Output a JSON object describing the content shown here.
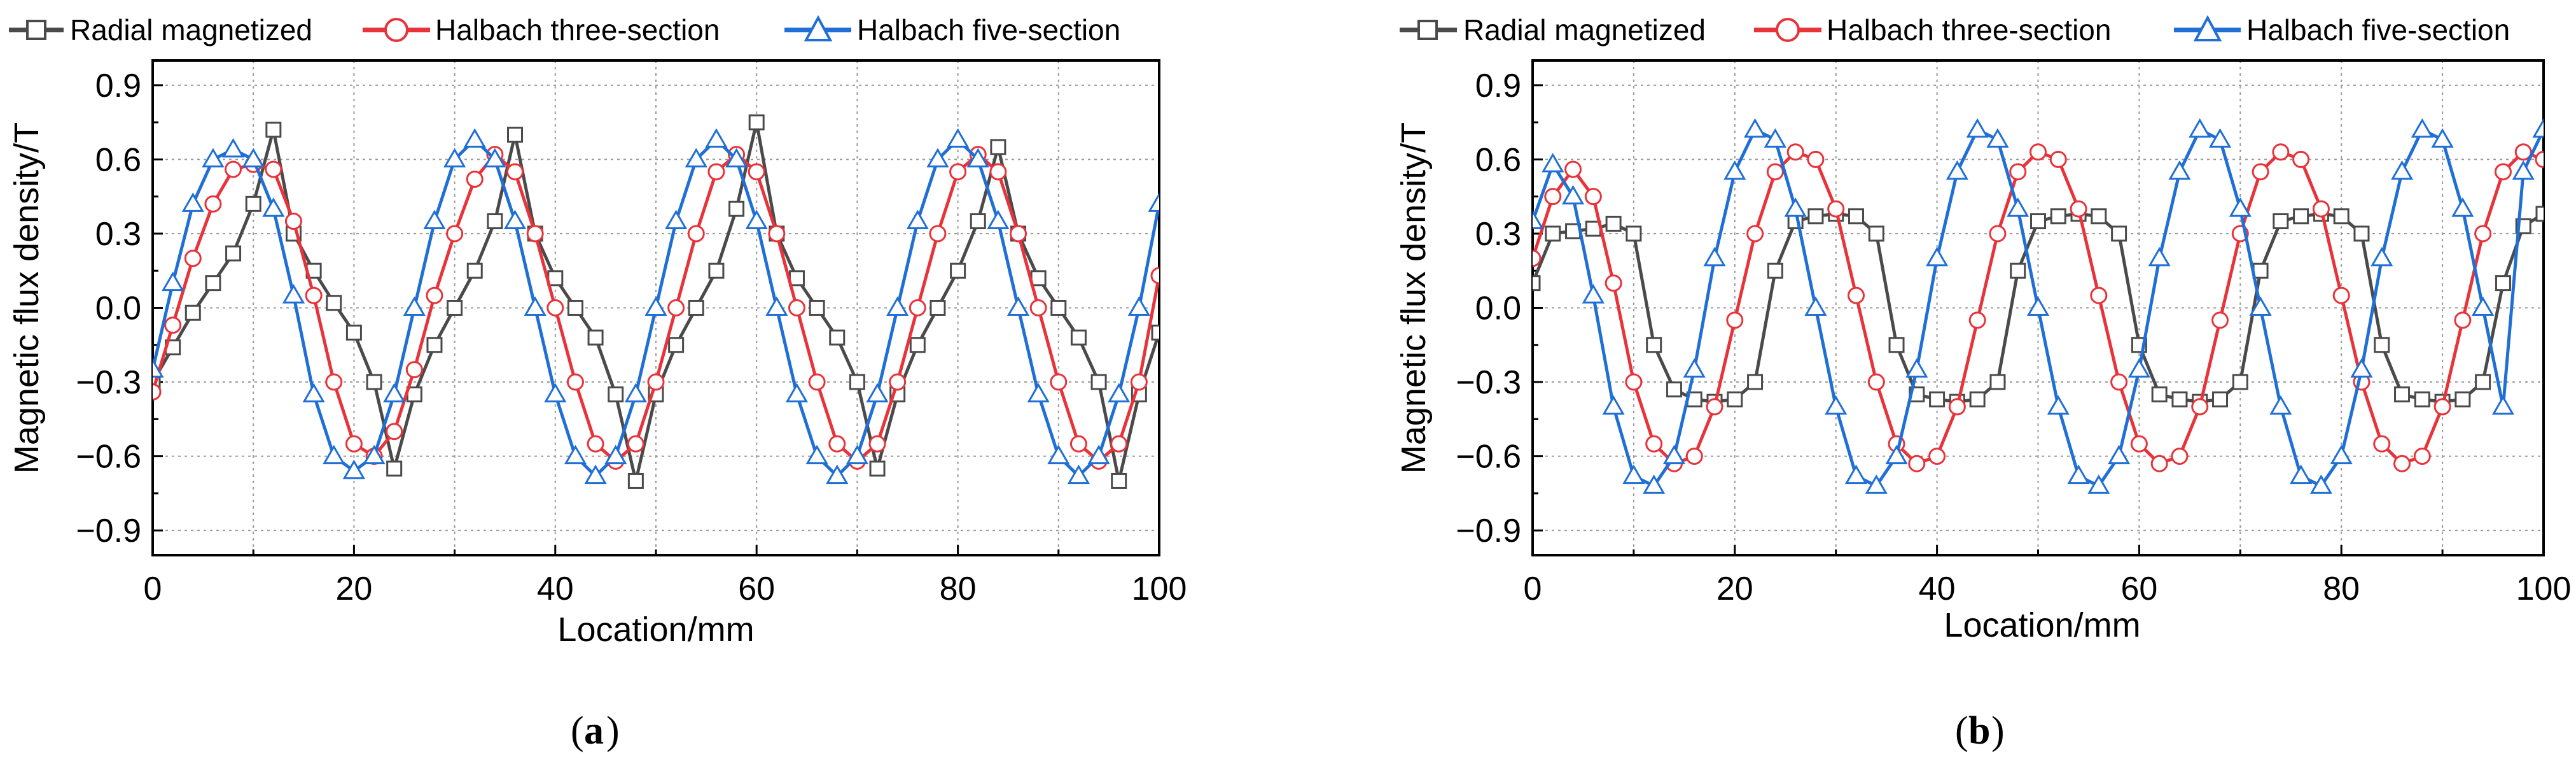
{
  "chart_data": [
    {
      "id": "a",
      "type": "line",
      "panel_label": "a",
      "title": "",
      "xlabel": "Location/mm",
      "ylabel": "Magnetic flux density/T",
      "xlim": [
        0,
        100
      ],
      "ylim": [
        -1.0,
        1.0
      ],
      "xticks": [
        0,
        20,
        40,
        60,
        80,
        100
      ],
      "yticks": [
        -0.9,
        -0.6,
        -0.3,
        0.0,
        0.3,
        0.6,
        0.9
      ],
      "ytick_labels": [
        "−0.9",
        "−0.6",
        "−0.3",
        "0.0",
        "0.3",
        "0.6",
        "0.9"
      ],
      "grid": true,
      "legend_placement": "top",
      "series": [
        {
          "name": "Radial magnetized",
          "color": "#4a4a4a",
          "marker": "square",
          "x": [
            0,
            2,
            4,
            6,
            8,
            10,
            12,
            14,
            16,
            18,
            20,
            22,
            24,
            26,
            28,
            30,
            32,
            34,
            36,
            38,
            40,
            42,
            44,
            46,
            48,
            50,
            52,
            54,
            56,
            58,
            60,
            62,
            64,
            66,
            68,
            70,
            72,
            74,
            76,
            78,
            80,
            82,
            84,
            86,
            88,
            90,
            92,
            94,
            96,
            98,
            100
          ],
          "y": [
            -0.3,
            -0.16,
            -0.02,
            0.1,
            0.22,
            0.42,
            0.72,
            0.3,
            0.15,
            0.02,
            -0.1,
            -0.3,
            -0.65,
            -0.35,
            -0.15,
            0.0,
            0.15,
            0.35,
            0.7,
            0.3,
            0.12,
            0.0,
            -0.12,
            -0.35,
            -0.7,
            -0.35,
            -0.15,
            0.0,
            0.15,
            0.4,
            0.75,
            0.3,
            0.12,
            0.0,
            -0.12,
            -0.3,
            -0.65,
            -0.35,
            -0.15,
            0.0,
            0.15,
            0.35,
            0.65,
            0.3,
            0.12,
            0.0,
            -0.12,
            -0.3,
            -0.7,
            -0.35,
            -0.1
          ]
        },
        {
          "name": "Halbach three-section",
          "color": "#e8333a",
          "marker": "circle",
          "x": [
            0,
            2,
            4,
            6,
            8,
            10,
            12,
            14,
            16,
            18,
            20,
            22,
            24,
            26,
            28,
            30,
            32,
            34,
            36,
            38,
            40,
            42,
            44,
            46,
            48,
            50,
            52,
            54,
            56,
            58,
            60,
            62,
            64,
            66,
            68,
            70,
            72,
            74,
            76,
            78,
            80,
            82,
            84,
            86,
            88,
            90,
            92,
            94,
            96,
            98,
            100
          ],
          "y": [
            -0.34,
            -0.07,
            0.2,
            0.42,
            0.56,
            0.58,
            0.56,
            0.35,
            0.05,
            -0.3,
            -0.55,
            -0.6,
            -0.5,
            -0.25,
            0.05,
            0.3,
            0.52,
            0.62,
            0.55,
            0.3,
            0.0,
            -0.3,
            -0.55,
            -0.62,
            -0.55,
            -0.3,
            0.0,
            0.3,
            0.55,
            0.62,
            0.55,
            0.3,
            0.0,
            -0.3,
            -0.55,
            -0.62,
            -0.55,
            -0.3,
            0.0,
            0.3,
            0.55,
            0.62,
            0.55,
            0.3,
            0.0,
            -0.3,
            -0.55,
            -0.62,
            -0.55,
            -0.3,
            0.13
          ]
        },
        {
          "name": "Halbach five-section",
          "color": "#1f6fd6",
          "marker": "triangle",
          "x": [
            0,
            2,
            4,
            6,
            8,
            10,
            12,
            14,
            16,
            18,
            20,
            22,
            24,
            26,
            28,
            30,
            32,
            34,
            36,
            38,
            40,
            42,
            44,
            46,
            48,
            50,
            52,
            54,
            56,
            58,
            60,
            62,
            64,
            66,
            68,
            70,
            72,
            74,
            76,
            78,
            80,
            82,
            84,
            86,
            88,
            90,
            92,
            94,
            96,
            98,
            100
          ],
          "y": [
            -0.25,
            0.1,
            0.42,
            0.6,
            0.64,
            0.6,
            0.4,
            0.05,
            -0.35,
            -0.6,
            -0.66,
            -0.6,
            -0.35,
            0.0,
            0.35,
            0.6,
            0.68,
            0.6,
            0.35,
            0.0,
            -0.35,
            -0.6,
            -0.68,
            -0.6,
            -0.35,
            0.0,
            0.35,
            0.6,
            0.68,
            0.6,
            0.35,
            0.0,
            -0.35,
            -0.6,
            -0.68,
            -0.6,
            -0.35,
            0.0,
            0.35,
            0.6,
            0.68,
            0.6,
            0.35,
            0.0,
            -0.35,
            -0.6,
            -0.68,
            -0.6,
            -0.35,
            0.0,
            0.42
          ]
        }
      ]
    },
    {
      "id": "b",
      "type": "line",
      "panel_label": "b",
      "title": "",
      "xlabel": "Location/mm",
      "ylabel": "Magnetic flux density/T",
      "xlim": [
        0,
        100
      ],
      "ylim": [
        -1.0,
        1.0
      ],
      "xticks": [
        0,
        20,
        40,
        60,
        80,
        100
      ],
      "yticks": [
        -0.9,
        -0.6,
        -0.3,
        0.0,
        0.3,
        0.6,
        0.9
      ],
      "ytick_labels": [
        "−0.9",
        "−0.6",
        "−0.3",
        "0.0",
        "0.3",
        "0.6",
        "0.9"
      ],
      "grid": true,
      "legend_placement": "top",
      "series": [
        {
          "name": "Radial magnetized",
          "color": "#4a4a4a",
          "marker": "square",
          "x": [
            0,
            2,
            4,
            6,
            8,
            10,
            12,
            14,
            16,
            18,
            20,
            22,
            24,
            26,
            28,
            30,
            32,
            34,
            36,
            38,
            40,
            42,
            44,
            46,
            48,
            50,
            52,
            54,
            56,
            58,
            60,
            62,
            64,
            66,
            68,
            70,
            72,
            74,
            76,
            78,
            80,
            82,
            84,
            86,
            88,
            90,
            92,
            94,
            96,
            98,
            100
          ],
          "y": [
            0.1,
            0.3,
            0.31,
            0.32,
            0.34,
            0.3,
            -0.15,
            -0.33,
            -0.37,
            -0.38,
            -0.37,
            -0.3,
            0.15,
            0.35,
            0.37,
            0.38,
            0.37,
            0.3,
            -0.15,
            -0.35,
            -0.37,
            -0.38,
            -0.37,
            -0.3,
            0.15,
            0.35,
            0.37,
            0.38,
            0.37,
            0.3,
            -0.15,
            -0.35,
            -0.37,
            -0.38,
            -0.37,
            -0.3,
            0.15,
            0.35,
            0.37,
            0.38,
            0.37,
            0.3,
            -0.15,
            -0.35,
            -0.37,
            -0.38,
            -0.37,
            -0.3,
            0.1,
            0.33,
            0.38
          ]
        },
        {
          "name": "Halbach three-section",
          "color": "#e8333a",
          "marker": "circle",
          "x": [
            0,
            2,
            4,
            6,
            8,
            10,
            12,
            14,
            16,
            18,
            20,
            22,
            24,
            26,
            28,
            30,
            32,
            34,
            36,
            38,
            40,
            42,
            44,
            46,
            48,
            50,
            52,
            54,
            56,
            58,
            60,
            62,
            64,
            66,
            68,
            70,
            72,
            74,
            76,
            78,
            80,
            82,
            84,
            86,
            88,
            90,
            92,
            94,
            96,
            98,
            100
          ],
          "y": [
            0.2,
            0.45,
            0.56,
            0.45,
            0.1,
            -0.3,
            -0.55,
            -0.63,
            -0.6,
            -0.4,
            -0.05,
            0.3,
            0.55,
            0.63,
            0.6,
            0.4,
            0.05,
            -0.3,
            -0.55,
            -0.63,
            -0.6,
            -0.4,
            -0.05,
            0.3,
            0.55,
            0.63,
            0.6,
            0.4,
            0.05,
            -0.3,
            -0.55,
            -0.63,
            -0.6,
            -0.4,
            -0.05,
            0.3,
            0.55,
            0.63,
            0.6,
            0.4,
            0.05,
            -0.3,
            -0.55,
            -0.63,
            -0.6,
            -0.4,
            -0.05,
            0.3,
            0.55,
            0.63,
            0.6
          ]
        },
        {
          "name": "Halbach five-section",
          "color": "#1f6fd6",
          "marker": "triangle",
          "x": [
            0,
            2,
            4,
            6,
            8,
            10,
            12,
            14,
            16,
            18,
            20,
            22,
            24,
            26,
            28,
            30,
            32,
            34,
            36,
            38,
            40,
            42,
            44,
            46,
            48,
            50,
            52,
            54,
            56,
            58,
            60,
            62,
            64,
            66,
            68,
            70,
            72,
            74,
            76,
            78,
            80,
            82,
            84,
            86,
            88,
            90,
            92,
            94,
            96,
            98,
            100
          ],
          "y": [
            0.35,
            0.58,
            0.45,
            0.05,
            -0.4,
            -0.68,
            -0.72,
            -0.6,
            -0.25,
            0.2,
            0.55,
            0.72,
            0.68,
            0.4,
            0.0,
            -0.4,
            -0.68,
            -0.72,
            -0.6,
            -0.25,
            0.2,
            0.55,
            0.72,
            0.68,
            0.4,
            0.0,
            -0.4,
            -0.68,
            -0.72,
            -0.6,
            -0.25,
            0.2,
            0.55,
            0.72,
            0.68,
            0.4,
            0.0,
            -0.4,
            -0.68,
            -0.72,
            -0.6,
            -0.25,
            0.2,
            0.55,
            0.72,
            0.68,
            0.4,
            0.0,
            -0.4,
            0.55,
            0.72
          ]
        }
      ]
    }
  ]
}
